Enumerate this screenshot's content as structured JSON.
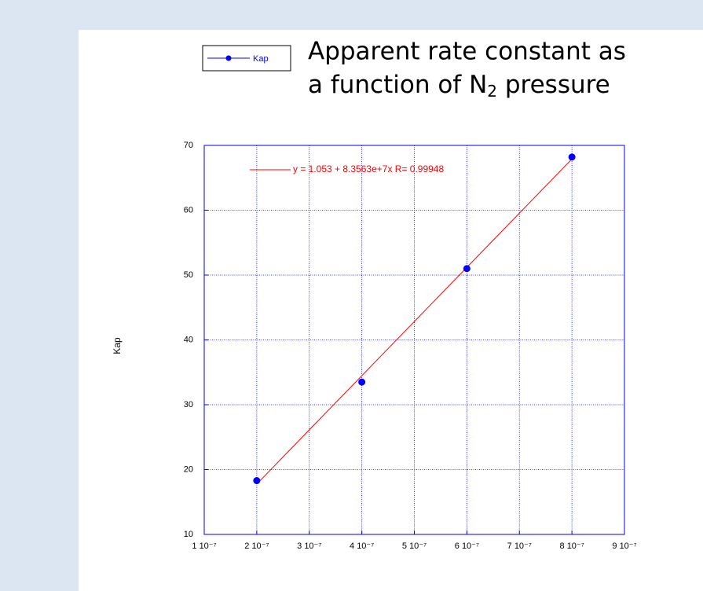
{
  "chart_data": {
    "type": "scatter",
    "title": {
      "line1": "Apparent rate constant as",
      "line2": "a function of N",
      "line2_sub": "2",
      "line2_end": " pressure"
    },
    "y_label": "Kap",
    "series": [
      {
        "name": "Kap",
        "color": "#0000ff",
        "x": [
          2e-07,
          4e-07,
          6e-07,
          8e-07
        ],
        "values": [
          18.3,
          33.5,
          51.0,
          68.2
        ]
      }
    ],
    "fit": {
      "label": "y = 1.053 + 8.3563e+7x   R= 0.99948",
      "intercept": 1.053,
      "slope": 83563000,
      "color": "#ff0000",
      "x": [
        2e-07,
        8e-07
      ]
    },
    "xlim": [
      1e-07,
      9e-07
    ],
    "xticks": [
      {
        "value": 1e-07,
        "label": "1 10⁻⁷"
      },
      {
        "value": 2e-07,
        "label": "2 10⁻⁷"
      },
      {
        "value": 3e-07,
        "label": "3 10⁻⁷"
      },
      {
        "value": 4e-07,
        "label": "4 10⁻⁷"
      },
      {
        "value": 5e-07,
        "label": "5 10⁻⁷"
      },
      {
        "value": 6e-07,
        "label": "6 10⁻⁷"
      },
      {
        "value": 7e-07,
        "label": "7 10⁻⁷"
      },
      {
        "value": 8e-07,
        "label": "8 10⁻⁷"
      },
      {
        "value": 9e-07,
        "label": "9 10⁻⁷"
      }
    ],
    "ylim": [
      10,
      70
    ],
    "yticks": [
      10,
      20,
      30,
      40,
      50,
      60,
      70
    ],
    "grid": true
  }
}
